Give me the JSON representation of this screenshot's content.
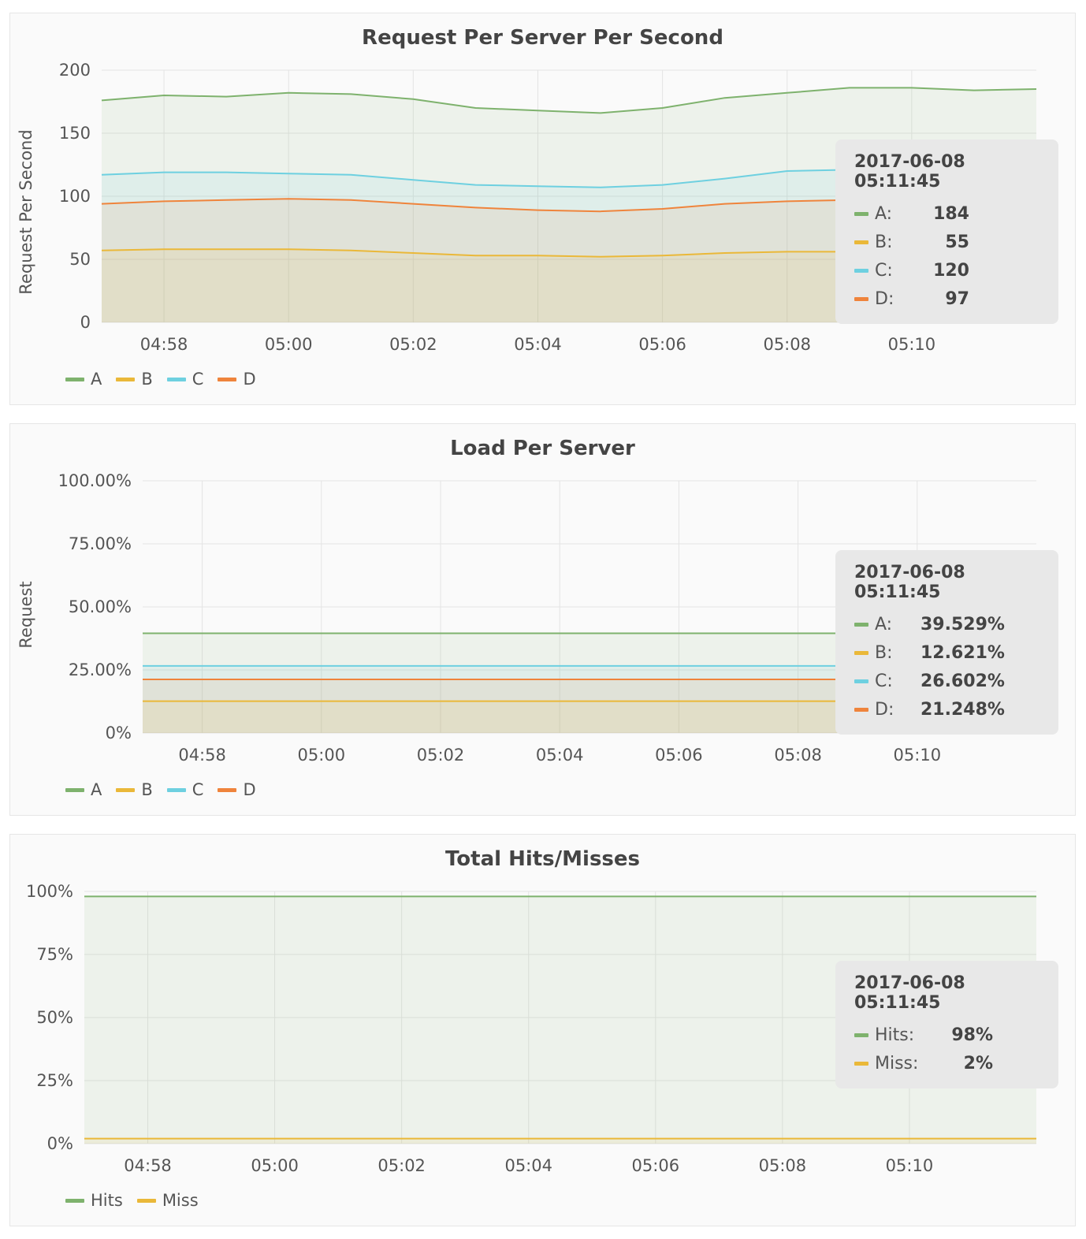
{
  "chart_data": [
    {
      "type": "area",
      "title": "Request Per Server Per Second",
      "ylabel": "Request Per Second",
      "xlabel": "",
      "ylim": [
        0,
        200
      ],
      "yticks": [
        "0",
        "50",
        "100",
        "150",
        "200"
      ],
      "yticks_values": [
        0,
        50,
        100,
        150,
        200
      ],
      "xticks": [
        "04:58",
        "05:00",
        "05:02",
        "05:04",
        "05:06",
        "05:08",
        "05:10"
      ],
      "x": [
        "04:57",
        "04:58",
        "04:59",
        "05:00",
        "05:01",
        "05:02",
        "05:03",
        "05:04",
        "05:05",
        "05:06",
        "05:07",
        "05:08",
        "05:09",
        "05:10",
        "05:11",
        "05:12"
      ],
      "series": [
        {
          "name": "A",
          "color": "#7eb26d",
          "values": [
            176,
            180,
            179,
            182,
            181,
            177,
            170,
            168,
            166,
            170,
            178,
            182,
            186,
            186,
            184,
            185
          ]
        },
        {
          "name": "B",
          "color": "#eab839",
          "values": [
            57,
            58,
            58,
            58,
            57,
            55,
            53,
            53,
            52,
            53,
            55,
            56,
            56,
            56,
            55,
            55
          ]
        },
        {
          "name": "C",
          "color": "#6ed0e0",
          "values": [
            117,
            119,
            119,
            118,
            117,
            113,
            109,
            108,
            107,
            109,
            114,
            120,
            121,
            120,
            120,
            120
          ]
        },
        {
          "name": "D",
          "color": "#ef843c",
          "values": [
            94,
            96,
            97,
            98,
            97,
            94,
            91,
            89,
            88,
            90,
            94,
            96,
            97,
            97,
            97,
            97
          ]
        }
      ],
      "legend_position": "bottom-left",
      "tooltip": {
        "time": "2017-06-08 05:11:45",
        "rows": [
          {
            "name": "A:",
            "value": "184",
            "color": "#7eb26d"
          },
          {
            "name": "B:",
            "value": "55",
            "color": "#eab839"
          },
          {
            "name": "C:",
            "value": "120",
            "color": "#6ed0e0"
          },
          {
            "name": "D:",
            "value": "97",
            "color": "#ef843c"
          }
        ]
      }
    },
    {
      "type": "area",
      "title": "Load Per Server",
      "ylabel": "Request",
      "xlabel": "",
      "ylim": [
        0,
        100
      ],
      "yticks": [
        "0%",
        "25.00%",
        "50.00%",
        "75.00%",
        "100.00%"
      ],
      "yticks_values": [
        0,
        25,
        50,
        75,
        100
      ],
      "xticks": [
        "04:58",
        "05:00",
        "05:02",
        "05:04",
        "05:06",
        "05:08",
        "05:10"
      ],
      "x": [
        "04:57",
        "05:12"
      ],
      "series": [
        {
          "name": "A",
          "color": "#7eb26d",
          "values": [
            39.529,
            39.529
          ]
        },
        {
          "name": "B",
          "color": "#eab839",
          "values": [
            12.621,
            12.621
          ]
        },
        {
          "name": "C",
          "color": "#6ed0e0",
          "values": [
            26.602,
            26.602
          ]
        },
        {
          "name": "D",
          "color": "#ef843c",
          "values": [
            21.248,
            21.248
          ]
        }
      ],
      "legend_position": "bottom-left",
      "tooltip": {
        "time": "2017-06-08 05:11:45",
        "rows": [
          {
            "name": "A:",
            "value": "39.529%",
            "color": "#7eb26d"
          },
          {
            "name": "B:",
            "value": "12.621%",
            "color": "#eab839"
          },
          {
            "name": "C:",
            "value": "26.602%",
            "color": "#6ed0e0"
          },
          {
            "name": "D:",
            "value": "21.248%",
            "color": "#ef843c"
          }
        ]
      }
    },
    {
      "type": "area",
      "title": "Total Hits/Misses",
      "ylabel": "",
      "xlabel": "",
      "ylim": [
        0,
        100
      ],
      "yticks": [
        "0%",
        "25%",
        "50%",
        "75%",
        "100%"
      ],
      "yticks_values": [
        0,
        25,
        50,
        75,
        100
      ],
      "xticks": [
        "04:58",
        "05:00",
        "05:02",
        "05:04",
        "05:06",
        "05:08",
        "05:10"
      ],
      "x": [
        "04:57",
        "05:12"
      ],
      "series": [
        {
          "name": "Hits",
          "color": "#7eb26d",
          "values": [
            98,
            98
          ]
        },
        {
          "name": "Miss",
          "color": "#eab839",
          "values": [
            2,
            2
          ]
        }
      ],
      "legend_position": "bottom-left",
      "tooltip": {
        "time": "2017-06-08 05:11:45",
        "rows": [
          {
            "name": "Hits:",
            "value": "98%",
            "color": "#7eb26d"
          },
          {
            "name": "Miss:",
            "value": "2%",
            "color": "#eab839"
          }
        ]
      }
    }
  ]
}
